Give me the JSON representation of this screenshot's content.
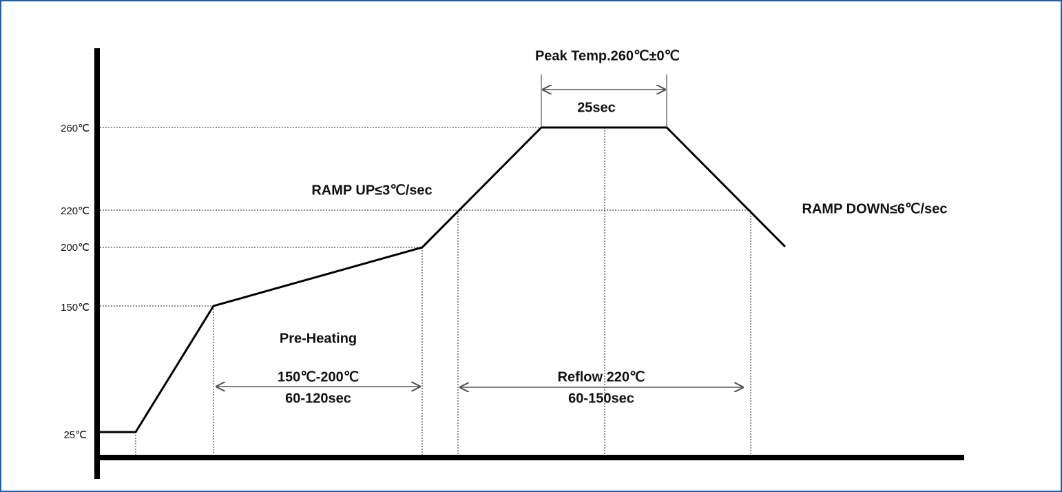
{
  "y_labels": [
    "260℃",
    "220℃",
    "200℃",
    "150℃",
    "25℃"
  ],
  "peak": {
    "title": "Peak Temp.260℃±0℃",
    "duration": "25sec"
  },
  "ramp_up": "RAMP UP≤3℃/sec",
  "ramp_down": "RAMP DOWN≤6℃/sec",
  "preheating": {
    "title": "Pre-Heating",
    "range": "150℃-200℃",
    "duration": "60-120sec"
  },
  "reflow": {
    "title": "Reflow 220℃",
    "duration": "60-150sec"
  }
}
